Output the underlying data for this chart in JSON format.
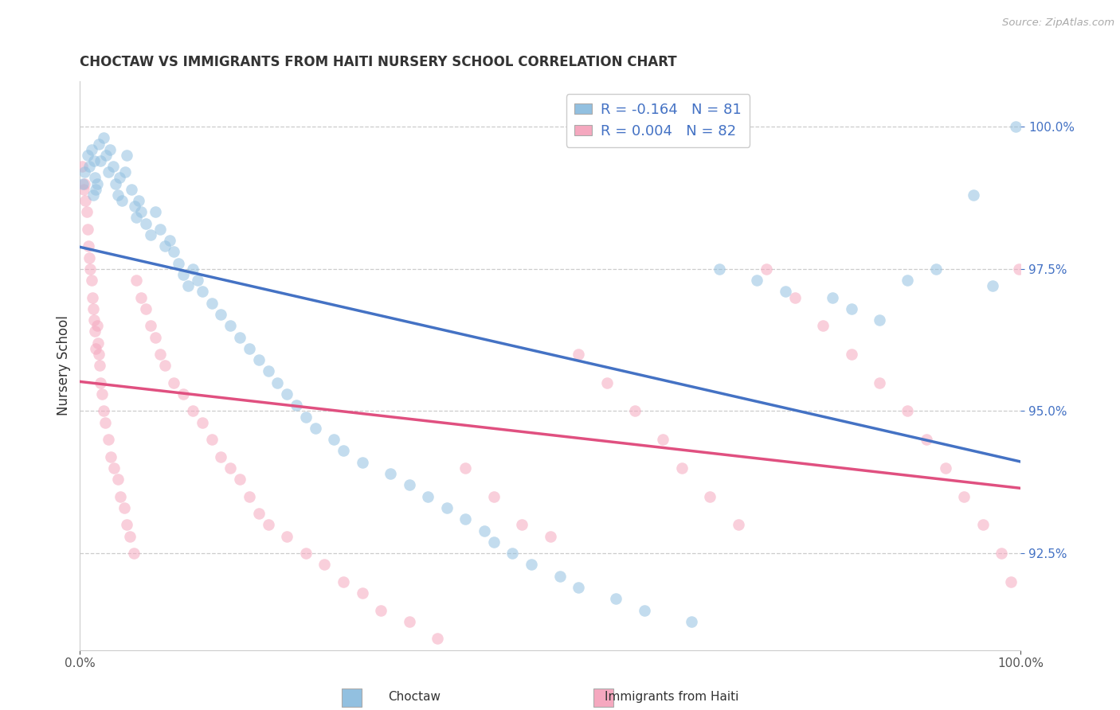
{
  "title": "CHOCTAW VS IMMIGRANTS FROM HAITI NURSERY SCHOOL CORRELATION CHART",
  "source": "Source: ZipAtlas.com",
  "ylabel": "Nursery School",
  "legend_label1": "Choctaw",
  "legend_label2": "Immigrants from Haiti",
  "R1": -0.164,
  "N1": 81,
  "R2": 0.004,
  "N2": 82,
  "blue_color": "#92c0e0",
  "pink_color": "#f5a8bf",
  "blue_line_color": "#4472c4",
  "pink_line_color": "#e05080",
  "background_color": "#ffffff",
  "ytick_vals": [
    92.5,
    95.0,
    97.5,
    100.0
  ],
  "ytick_labels": [
    "92.5%",
    "95.0%",
    "97.5%",
    "100.0%"
  ],
  "blue_x": [
    0.3,
    0.5,
    0.8,
    1.0,
    1.2,
    1.4,
    1.5,
    1.6,
    1.7,
    1.8,
    2.0,
    2.2,
    2.5,
    2.8,
    3.0,
    3.2,
    3.5,
    3.8,
    4.0,
    4.2,
    4.5,
    4.8,
    5.0,
    5.5,
    5.8,
    6.0,
    6.2,
    6.5,
    7.0,
    7.5,
    8.0,
    8.5,
    9.0,
    9.5,
    10.0,
    10.5,
    11.0,
    11.5,
    12.0,
    12.5,
    13.0,
    14.0,
    15.0,
    16.0,
    17.0,
    18.0,
    19.0,
    20.0,
    21.0,
    22.0,
    23.0,
    24.0,
    25.0,
    27.0,
    28.0,
    30.0,
    33.0,
    35.0,
    37.0,
    39.0,
    41.0,
    43.0,
    44.0,
    46.0,
    48.0,
    51.0,
    53.0,
    57.0,
    60.0,
    65.0,
    68.0,
    72.0,
    75.0,
    80.0,
    82.0,
    85.0,
    88.0,
    91.0,
    95.0,
    97.0,
    99.5
  ],
  "blue_y": [
    99.0,
    99.2,
    99.5,
    99.3,
    99.6,
    98.8,
    99.4,
    99.1,
    98.9,
    99.0,
    99.7,
    99.4,
    99.8,
    99.5,
    99.2,
    99.6,
    99.3,
    99.0,
    98.8,
    99.1,
    98.7,
    99.2,
    99.5,
    98.9,
    98.6,
    98.4,
    98.7,
    98.5,
    98.3,
    98.1,
    98.5,
    98.2,
    97.9,
    98.0,
    97.8,
    97.6,
    97.4,
    97.2,
    97.5,
    97.3,
    97.1,
    96.9,
    96.7,
    96.5,
    96.3,
    96.1,
    95.9,
    95.7,
    95.5,
    95.3,
    95.1,
    94.9,
    94.7,
    94.5,
    94.3,
    94.1,
    93.9,
    93.7,
    93.5,
    93.3,
    93.1,
    92.9,
    92.7,
    92.5,
    92.3,
    92.1,
    91.9,
    91.7,
    91.5,
    91.3,
    97.5,
    97.3,
    97.1,
    97.0,
    96.8,
    96.6,
    97.3,
    97.5,
    98.8,
    97.2,
    100.0
  ],
  "pink_x": [
    0.2,
    0.4,
    0.5,
    0.6,
    0.7,
    0.8,
    0.9,
    1.0,
    1.1,
    1.2,
    1.3,
    1.4,
    1.5,
    1.6,
    1.7,
    1.8,
    1.9,
    2.0,
    2.1,
    2.2,
    2.3,
    2.5,
    2.7,
    3.0,
    3.3,
    3.6,
    4.0,
    4.3,
    4.7,
    5.0,
    5.3,
    5.7,
    6.0,
    6.5,
    7.0,
    7.5,
    8.0,
    8.5,
    9.0,
    10.0,
    11.0,
    12.0,
    13.0,
    14.0,
    15.0,
    16.0,
    17.0,
    18.0,
    19.0,
    20.0,
    22.0,
    24.0,
    26.0,
    28.0,
    30.0,
    32.0,
    35.0,
    38.0,
    41.0,
    44.0,
    47.0,
    50.0,
    53.0,
    56.0,
    59.0,
    62.0,
    64.0,
    67.0,
    70.0,
    73.0,
    76.0,
    79.0,
    82.0,
    85.0,
    88.0,
    90.0,
    92.0,
    94.0,
    96.0,
    98.0,
    99.0,
    99.8
  ],
  "pink_y": [
    99.3,
    98.9,
    99.0,
    98.7,
    98.5,
    98.2,
    97.9,
    97.7,
    97.5,
    97.3,
    97.0,
    96.8,
    96.6,
    96.4,
    96.1,
    96.5,
    96.2,
    96.0,
    95.8,
    95.5,
    95.3,
    95.0,
    94.8,
    94.5,
    94.2,
    94.0,
    93.8,
    93.5,
    93.3,
    93.0,
    92.8,
    92.5,
    97.3,
    97.0,
    96.8,
    96.5,
    96.3,
    96.0,
    95.8,
    95.5,
    95.3,
    95.0,
    94.8,
    94.5,
    94.2,
    94.0,
    93.8,
    93.5,
    93.2,
    93.0,
    92.8,
    92.5,
    92.3,
    92.0,
    91.8,
    91.5,
    91.3,
    91.0,
    94.0,
    93.5,
    93.0,
    92.8,
    96.0,
    95.5,
    95.0,
    94.5,
    94.0,
    93.5,
    93.0,
    97.5,
    97.0,
    96.5,
    96.0,
    95.5,
    95.0,
    94.5,
    94.0,
    93.5,
    93.0,
    92.5,
    92.0,
    97.5
  ]
}
